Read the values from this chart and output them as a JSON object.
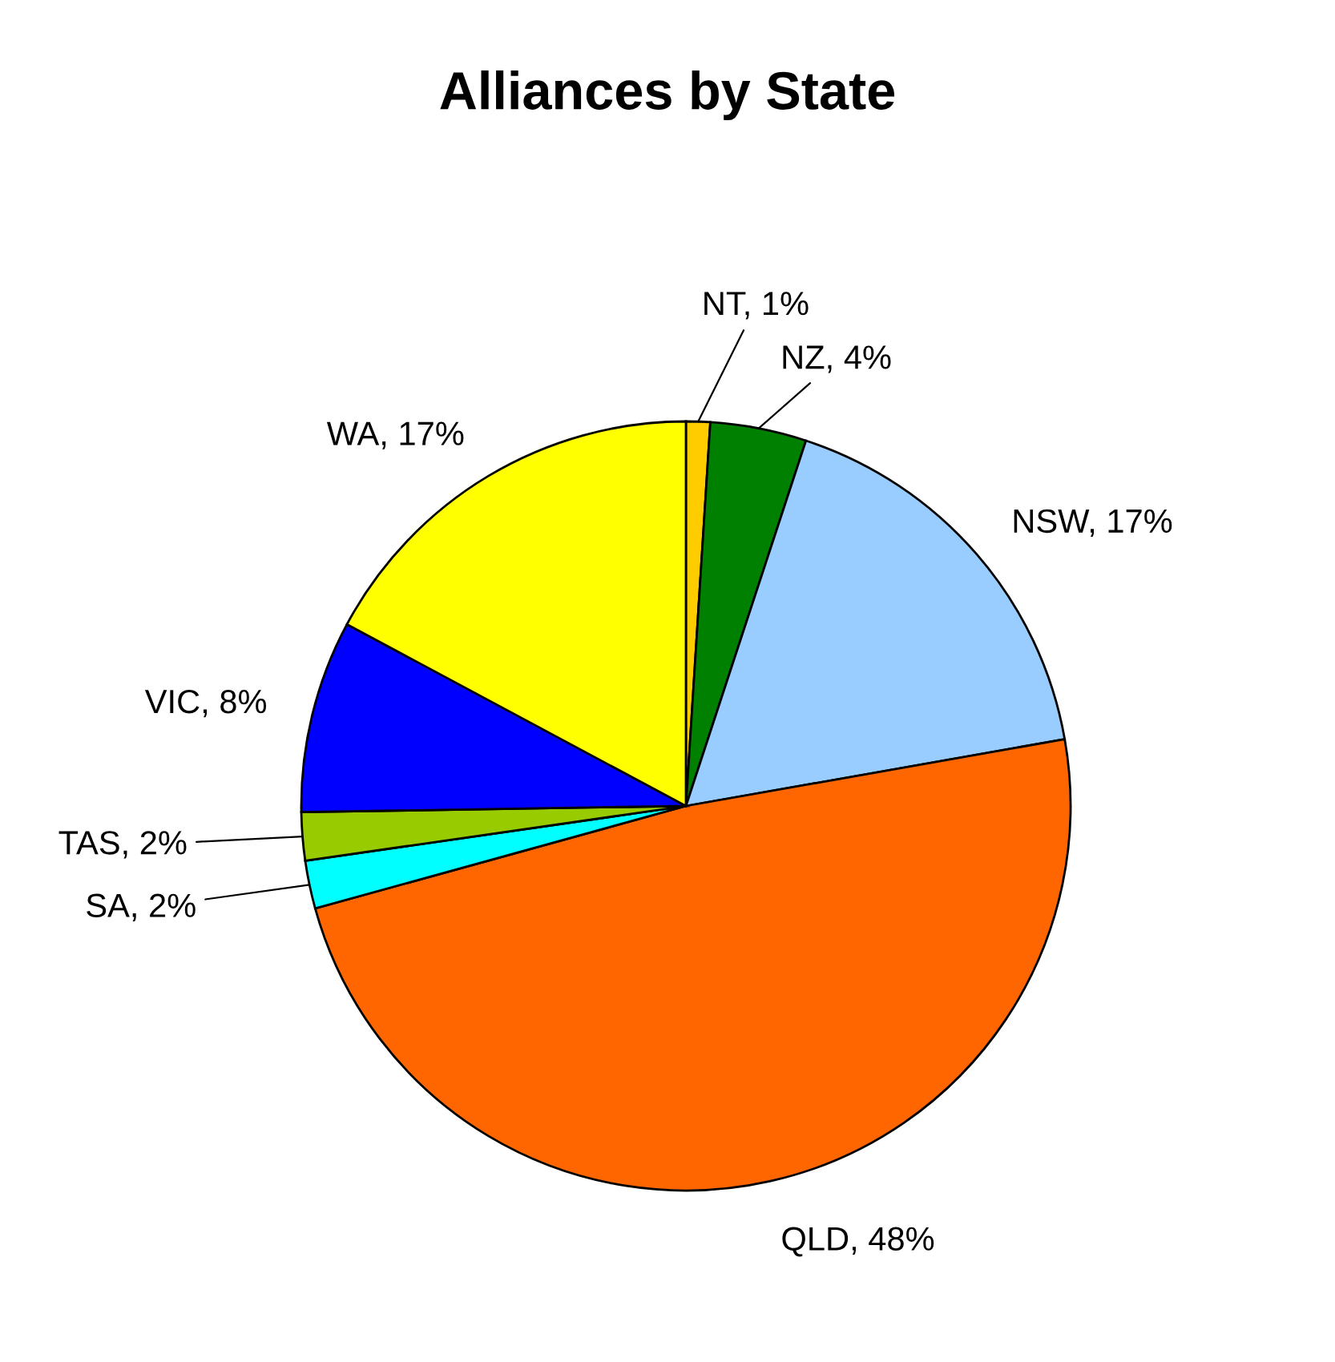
{
  "chart_data": {
    "type": "pie",
    "title": "Alliances by State",
    "categories": [
      "NT",
      "NZ",
      "NSW",
      "QLD",
      "SA",
      "TAS",
      "VIC",
      "WA"
    ],
    "values": [
      1,
      4,
      17,
      48,
      2,
      2,
      8,
      17
    ],
    "value_labels": [
      "1%",
      "4%",
      "17%",
      "48%",
      "2%",
      "2%",
      "8%",
      "17%"
    ],
    "colors": [
      "#ffcc00",
      "#008000",
      "#99ccff",
      "#ff6600",
      "#00ffff",
      "#99cc00",
      "#0000ff",
      "#ffff00"
    ]
  }
}
